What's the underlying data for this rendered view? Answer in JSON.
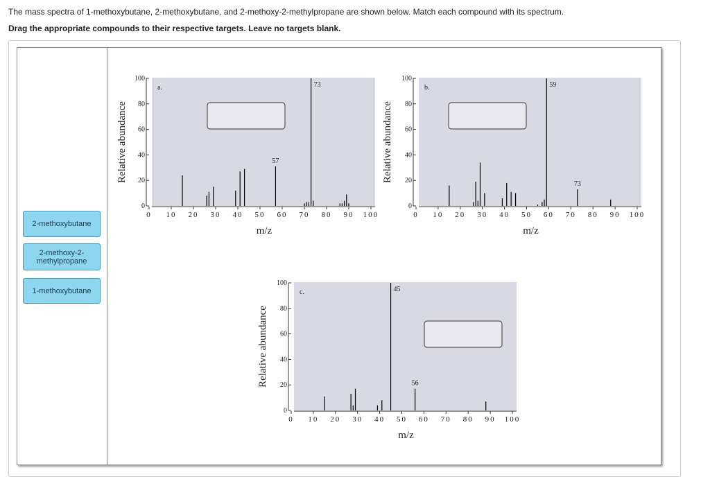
{
  "question": {
    "prompt": "The mass spectra of 1-methoxybutane, 2-methoxybutane, and 2-methoxy-2-methylpropane are shown below. Match each compound with its spectrum.",
    "instruction": "Drag the appropriate compounds to their respective targets. Leave no targets blank."
  },
  "answers": [
    "2-methoxybutane",
    "2-methoxy-2-methylpropane",
    "1-methoxybutane"
  ],
  "chart_data": [
    {
      "type": "bar",
      "label": "a.",
      "x": [
        15,
        26,
        27,
        29,
        39,
        41,
        43,
        57,
        70,
        71,
        72,
        73,
        74,
        86,
        87,
        88,
        89,
        90
      ],
      "values": [
        24,
        8,
        11,
        15,
        12,
        27,
        29,
        31,
        2,
        3,
        3,
        100,
        4,
        2,
        2,
        4,
        9,
        2
      ],
      "xlim": [
        0,
        100
      ],
      "ylim": [
        0,
        100
      ],
      "xticks": [
        0,
        10,
        20,
        30,
        40,
        50,
        60,
        70,
        80,
        90,
        100
      ],
      "yticks": [
        0,
        20,
        40,
        60,
        80,
        100
      ],
      "xlabel": "m/z",
      "ylabel": "Relative abundance",
      "annotations": [
        {
          "x": 57,
          "text": "57"
        },
        {
          "x": 73,
          "text": "73"
        }
      ],
      "color": "#000000",
      "background": "#d9d9e4"
    },
    {
      "type": "bar",
      "label": "b.",
      "x": [
        15,
        26,
        27,
        28,
        29,
        31,
        39,
        41,
        43,
        45,
        55,
        57,
        58,
        59,
        73,
        88
      ],
      "values": [
        16,
        3,
        19,
        4,
        34,
        10,
        6,
        18,
        11,
        10,
        1,
        3,
        5,
        100,
        13,
        5
      ],
      "xlim": [
        0,
        100
      ],
      "ylim": [
        0,
        100
      ],
      "xticks": [
        0,
        10,
        20,
        30,
        40,
        50,
        60,
        70,
        80,
        90,
        100
      ],
      "yticks": [
        0,
        20,
        40,
        60,
        80,
        100
      ],
      "xlabel": "m/z",
      "ylabel": "Relative abundance",
      "annotations": [
        {
          "x": 59,
          "text": "59"
        },
        {
          "x": 73,
          "text": "73"
        }
      ],
      "color": "#000000",
      "background": "#d9d9e4"
    },
    {
      "type": "bar",
      "label": "c.",
      "x": [
        15,
        27,
        28,
        29,
        39,
        41,
        45,
        56,
        88
      ],
      "values": [
        11,
        13,
        4,
        17,
        4,
        8,
        100,
        17,
        7
      ],
      "xlim": [
        0,
        100
      ],
      "ylim": [
        0,
        100
      ],
      "xticks": [
        0,
        10,
        20,
        30,
        40,
        50,
        60,
        70,
        80,
        90,
        100
      ],
      "yticks": [
        0,
        20,
        40,
        60,
        80,
        100
      ],
      "xlabel": "m/z",
      "ylabel": "Relative abundance",
      "annotations": [
        {
          "x": 45,
          "text": "45"
        },
        {
          "x": 56,
          "text": "56"
        }
      ],
      "color": "#000000",
      "background": "#d9d9e4"
    }
  ]
}
